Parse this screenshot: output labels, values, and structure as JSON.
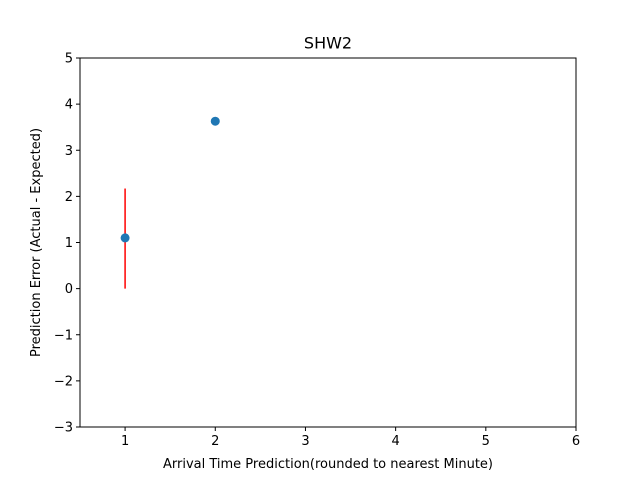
{
  "chart_data": {
    "type": "scatter",
    "title": "SHW2",
    "xlabel": "Arrival Time Prediction(rounded to nearest Minute)",
    "ylabel": "Prediction Error (Actual - Expected)",
    "xlim": [
      0.5,
      6
    ],
    "ylim": [
      -3,
      5
    ],
    "xticks": [
      1,
      2,
      3,
      4,
      5,
      6
    ],
    "yticks": [
      -3,
      -2,
      -1,
      0,
      1,
      2,
      3,
      4,
      5
    ],
    "xtick_labels": [
      "1",
      "2",
      "3",
      "4",
      "5",
      "6"
    ],
    "ytick_labels": [
      "−3",
      "−2",
      "−1",
      "0",
      "1",
      "2",
      "3",
      "4",
      "5"
    ],
    "grid": false,
    "points": [
      {
        "x": 1,
        "y": 1.1,
        "yerr_low": 0.0,
        "yerr_high": 2.17
      },
      {
        "x": 2,
        "y": 3.63
      }
    ],
    "marker_color": "#1f77b4",
    "errorbar_color": "#ff0000"
  }
}
